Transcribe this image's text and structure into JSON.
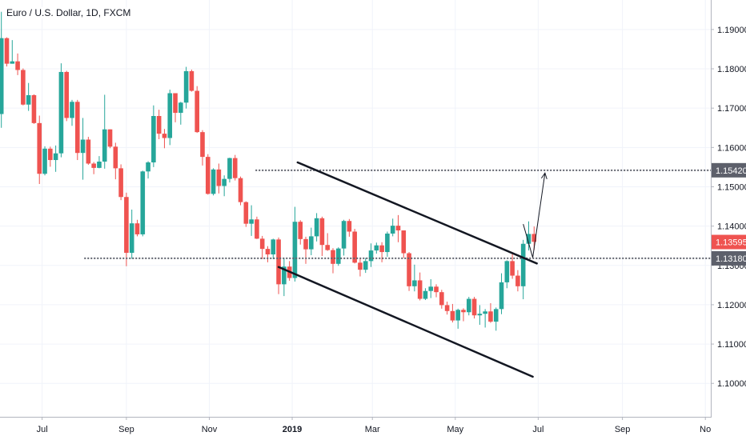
{
  "chart_data": {
    "type": "candlestick",
    "title": "Euro / U.S. Dollar, 1D, FXCM",
    "ylim": [
      1.0915,
      1.1975
    ],
    "y_ticks": [
      "1.19000",
      "1.18000",
      "1.17000",
      "1.16000",
      "1.15000",
      "1.14000",
      "1.13000",
      "1.12000",
      "1.11000",
      "1.10000"
    ],
    "x_ticks": [
      {
        "label": "Jul",
        "date": "2018-07-01",
        "bold": false
      },
      {
        "label": "Sep",
        "date": "2018-09-01",
        "bold": false
      },
      {
        "label": "Nov",
        "date": "2018-11-01",
        "bold": false
      },
      {
        "label": "2019",
        "date": "2019-01-01",
        "bold": true
      },
      {
        "label": "Mar",
        "date": "2019-03-01",
        "bold": false
      },
      {
        "label": "May",
        "date": "2019-05-01",
        "bold": false
      },
      {
        "label": "Jul",
        "date": "2019-07-01",
        "bold": false
      },
      {
        "label": "Sep",
        "date": "2019-09-01",
        "bold": false
      },
      {
        "label": "No",
        "date": "2019-11-01",
        "bold": false
      }
    ],
    "xlim": [
      "2018-05-31",
      "2019-11-05"
    ],
    "current_price": {
      "label": "1.13595",
      "value": 1.13595,
      "color": "#ef5350"
    },
    "levels": [
      {
        "label": "1.15420",
        "value": 1.1542,
        "from": "2018-12-05",
        "color": "#5d606b"
      },
      {
        "label": "1.13180",
        "value": 1.1318,
        "from": "2018-08-01",
        "color": "#5d606b"
      }
    ],
    "channel_lines": [
      {
        "from": {
          "date": "2019-01-05",
          "price": 1.1562
        },
        "to": {
          "date": "2019-06-30",
          "price": 1.1305
        }
      },
      {
        "from": {
          "date": "2018-12-22",
          "price": 1.1296
        },
        "to": {
          "date": "2019-06-27",
          "price": 1.1017
        }
      }
    ],
    "projection": [
      {
        "date": "2019-06-20",
        "price": 1.1405
      },
      {
        "date": "2019-06-27",
        "price": 1.132
      },
      {
        "date": "2019-07-06",
        "price": 1.1535
      }
    ],
    "up_color": "#26a69a",
    "down_color": "#ef5350",
    "candles_fields": [
      "date",
      "open",
      "high",
      "low",
      "close"
    ],
    "candles": [
      [
        "2018-06-01",
        1.1685,
        1.1945,
        1.165,
        1.1878
      ],
      [
        "2018-06-05",
        1.1878,
        1.188,
        1.1806,
        1.1813
      ],
      [
        "2018-06-09",
        1.1813,
        1.1873,
        1.1813,
        1.1819
      ],
      [
        "2018-06-13",
        1.1819,
        1.1839,
        1.1784,
        1.1797
      ],
      [
        "2018-06-17",
        1.1797,
        1.1801,
        1.1707,
        1.1709
      ],
      [
        "2018-06-21",
        1.1709,
        1.1764,
        1.1693,
        1.1733
      ],
      [
        "2018-06-25",
        1.1733,
        1.1735,
        1.166,
        1.1662
      ],
      [
        "2018-06-29",
        1.1662,
        1.1681,
        1.1507,
        1.1533
      ],
      [
        "2018-07-03",
        1.1533,
        1.1603,
        1.1529,
        1.1597
      ],
      [
        "2018-07-07",
        1.1597,
        1.1602,
        1.1551,
        1.1568
      ],
      [
        "2018-07-11",
        1.1568,
        1.1605,
        1.1538,
        1.1585
      ],
      [
        "2018-07-15",
        1.1585,
        1.1814,
        1.1575,
        1.1792
      ],
      [
        "2018-07-19",
        1.1792,
        1.1795,
        1.1667,
        1.1675
      ],
      [
        "2018-07-23",
        1.1675,
        1.1721,
        1.1655,
        1.1716
      ],
      [
        "2018-07-27",
        1.1716,
        1.1721,
        1.1568,
        1.1586
      ],
      [
        "2018-07-31",
        1.1586,
        1.1675,
        1.1518,
        1.162
      ],
      [
        "2018-08-04",
        1.162,
        1.1627,
        1.1556,
        1.1559
      ],
      [
        "2018-08-08",
        1.1559,
        1.1563,
        1.1532,
        1.1548
      ],
      [
        "2018-08-12",
        1.1548,
        1.1578,
        1.1547,
        1.1564
      ],
      [
        "2018-08-16",
        1.1564,
        1.1734,
        1.1546,
        1.1646
      ],
      [
        "2018-08-20",
        1.1646,
        1.1646,
        1.1598,
        1.1602
      ],
      [
        "2018-08-24",
        1.1602,
        1.1612,
        1.1519,
        1.1547
      ],
      [
        "2018-08-28",
        1.1547,
        1.1557,
        1.1466,
        1.1474
      ],
      [
        "2018-09-01",
        1.1474,
        1.1485,
        1.1298,
        1.1332
      ],
      [
        "2018-09-05",
        1.1332,
        1.1442,
        1.1317,
        1.1407
      ],
      [
        "2018-09-09",
        1.1407,
        1.1416,
        1.1374,
        1.1379
      ],
      [
        "2018-09-13",
        1.1379,
        1.1541,
        1.1374,
        1.1539
      ],
      [
        "2018-09-17",
        1.1539,
        1.1565,
        1.1521,
        1.1562
      ],
      [
        "2018-09-21",
        1.1562,
        1.1707,
        1.155,
        1.168
      ],
      [
        "2018-09-25",
        1.168,
        1.1696,
        1.1621,
        1.1635
      ],
      [
        "2018-09-29",
        1.1635,
        1.1647,
        1.1598,
        1.1624
      ],
      [
        "2018-10-03",
        1.1624,
        1.1747,
        1.1606,
        1.1738
      ],
      [
        "2018-10-07",
        1.1738,
        1.1738,
        1.1664,
        1.1688
      ],
      [
        "2018-10-11",
        1.1688,
        1.1716,
        1.1658,
        1.1714
      ],
      [
        "2018-10-15",
        1.1714,
        1.1805,
        1.1699,
        1.1794
      ],
      [
        "2018-10-19",
        1.1794,
        1.1798,
        1.1742,
        1.1744
      ],
      [
        "2018-10-23",
        1.1744,
        1.1756,
        1.1637,
        1.1639
      ],
      [
        "2018-10-27",
        1.1639,
        1.1644,
        1.1554,
        1.1576
      ],
      [
        "2018-10-31",
        1.1576,
        1.1583,
        1.148,
        1.1482
      ],
      [
        "2018-11-04",
        1.1482,
        1.1547,
        1.1478,
        1.1544
      ],
      [
        "2018-11-08",
        1.1544,
        1.1559,
        1.1483,
        1.1502
      ],
      [
        "2018-11-12",
        1.1502,
        1.1529,
        1.1476,
        1.152
      ],
      [
        "2018-11-16",
        1.152,
        1.1574,
        1.1511,
        1.1573
      ],
      [
        "2018-11-20",
        1.1573,
        1.1581,
        1.1516,
        1.1522
      ],
      [
        "2018-11-24",
        1.1522,
        1.1526,
        1.1453,
        1.1461
      ],
      [
        "2018-11-28",
        1.1461,
        1.1463,
        1.1398,
        1.1406
      ],
      [
        "2018-12-02",
        1.1406,
        1.1453,
        1.1375,
        1.1417
      ],
      [
        "2018-12-06",
        1.1417,
        1.1424,
        1.1367,
        1.1368
      ],
      [
        "2018-12-10",
        1.1368,
        1.1375,
        1.1316,
        1.1342
      ],
      [
        "2018-12-14",
        1.1342,
        1.1349,
        1.1308,
        1.1328
      ],
      [
        "2018-12-18",
        1.1328,
        1.1368,
        1.1316,
        1.1366
      ],
      [
        "2018-12-22",
        1.1366,
        1.1371,
        1.1227,
        1.1252
      ],
      [
        "2018-12-26",
        1.1252,
        1.1318,
        1.1222,
        1.1297
      ],
      [
        "2018-12-30",
        1.1297,
        1.1311,
        1.1261,
        1.1268
      ],
      [
        "2019-01-03",
        1.1268,
        1.1449,
        1.1259,
        1.1411
      ],
      [
        "2019-01-07",
        1.1411,
        1.1415,
        1.1353,
        1.1367
      ],
      [
        "2019-01-11",
        1.1367,
        1.1373,
        1.1304,
        1.1341
      ],
      [
        "2019-01-15",
        1.1341,
        1.1396,
        1.1326,
        1.1374
      ],
      [
        "2019-01-19",
        1.1374,
        1.1433,
        1.1361,
        1.142
      ],
      [
        "2019-01-23",
        1.142,
        1.1424,
        1.1324,
        1.1352
      ],
      [
        "2019-01-27",
        1.1352,
        1.1382,
        1.1337,
        1.1339
      ],
      [
        "2019-01-31",
        1.1339,
        1.1344,
        1.128,
        1.1304
      ],
      [
        "2019-02-04",
        1.1304,
        1.1346,
        1.1299,
        1.1343
      ],
      [
        "2019-02-08",
        1.1343,
        1.1416,
        1.1325,
        1.1413
      ],
      [
        "2019-02-12",
        1.1413,
        1.1418,
        1.1373,
        1.1386
      ],
      [
        "2019-02-16",
        1.1386,
        1.1393,
        1.1305,
        1.1307
      ],
      [
        "2019-02-20",
        1.1307,
        1.1318,
        1.1272,
        1.1289
      ],
      [
        "2019-02-24",
        1.1289,
        1.1319,
        1.1281,
        1.1311
      ],
      [
        "2019-02-28",
        1.1311,
        1.1356,
        1.1296,
        1.1338
      ],
      [
        "2019-03-04",
        1.1338,
        1.1358,
        1.133,
        1.1351
      ],
      [
        "2019-03-08",
        1.1351,
        1.1359,
        1.1308,
        1.1334
      ],
      [
        "2019-03-12",
        1.1334,
        1.1386,
        1.1322,
        1.1381
      ],
      [
        "2019-03-16",
        1.1381,
        1.1419,
        1.1374,
        1.1401
      ],
      [
        "2019-03-20",
        1.1401,
        1.1428,
        1.1359,
        1.1389
      ],
      [
        "2019-03-24",
        1.1389,
        1.1389,
        1.1319,
        1.1331
      ],
      [
        "2019-03-28",
        1.1331,
        1.1334,
        1.1235,
        1.1247
      ],
      [
        "2019-04-01",
        1.1247,
        1.1302,
        1.1234,
        1.1262
      ],
      [
        "2019-04-05",
        1.1262,
        1.1282,
        1.1211,
        1.1215
      ],
      [
        "2019-04-09",
        1.1215,
        1.1242,
        1.1212,
        1.1235
      ],
      [
        "2019-04-13",
        1.1235,
        1.1265,
        1.1217,
        1.1246
      ],
      [
        "2019-04-17",
        1.1246,
        1.1252,
        1.1219,
        1.1232
      ],
      [
        "2019-04-21",
        1.1232,
        1.1238,
        1.119,
        1.1199
      ],
      [
        "2019-04-25",
        1.1199,
        1.1208,
        1.1175,
        1.1184
      ],
      [
        "2019-04-29",
        1.1184,
        1.1202,
        1.1155,
        1.116
      ],
      [
        "2019-05-03",
        1.116,
        1.119,
        1.1139,
        1.1187
      ],
      [
        "2019-05-07",
        1.1187,
        1.1191,
        1.1158,
        1.1181
      ],
      [
        "2019-05-11",
        1.1181,
        1.122,
        1.1173,
        1.1215
      ],
      [
        "2019-05-15",
        1.1215,
        1.122,
        1.1165,
        1.1173
      ],
      [
        "2019-05-19",
        1.1173,
        1.1199,
        1.1149,
        1.1177
      ],
      [
        "2019-05-23",
        1.1177,
        1.1189,
        1.1142,
        1.1183
      ],
      [
        "2019-05-27",
        1.1183,
        1.1204,
        1.1154,
        1.1157
      ],
      [
        "2019-05-31",
        1.1157,
        1.1193,
        1.1134,
        1.1189
      ],
      [
        "2019-06-04",
        1.1189,
        1.128,
        1.1176,
        1.1257
      ],
      [
        "2019-06-08",
        1.1257,
        1.1313,
        1.1242,
        1.1311
      ],
      [
        "2019-06-12",
        1.1311,
        1.1334,
        1.1266,
        1.1274
      ],
      [
        "2019-06-16",
        1.1274,
        1.1288,
        1.1234,
        1.1247
      ],
      [
        "2019-06-20",
        1.1247,
        1.1365,
        1.1214,
        1.1355
      ],
      [
        "2019-06-24",
        1.1355,
        1.1412,
        1.1338,
        1.138
      ],
      [
        "2019-06-28",
        1.138,
        1.1399,
        1.1339,
        1.136
      ]
    ]
  }
}
